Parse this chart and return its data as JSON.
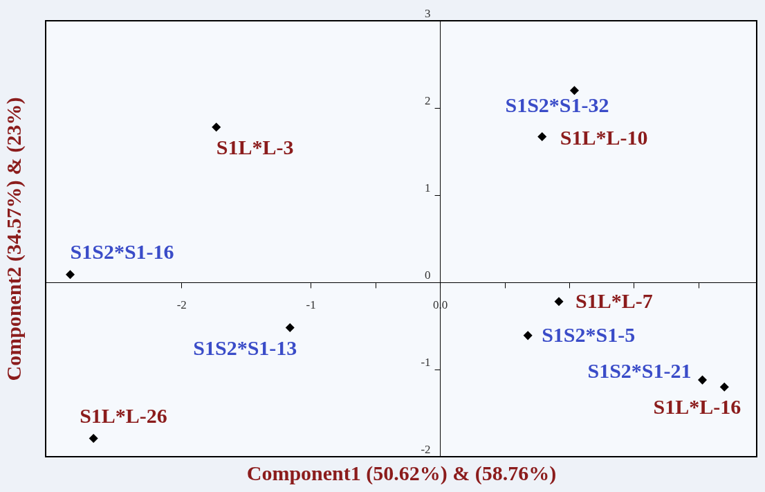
{
  "chart_data": {
    "type": "scatter",
    "xlabel": "Component1 (50.62%) & (58.76%)",
    "ylabel": "Component2 (34.57%) & (23%)",
    "xlim": [
      -3.05,
      2.45
    ],
    "ylim": [
      -2,
      3
    ],
    "xticks": [
      {
        "value": -2,
        "label": "-2"
      },
      {
        "value": -1,
        "label": "-1"
      },
      {
        "value": -0.5,
        "label": null
      },
      {
        "value": 0,
        "label": "0.0"
      },
      {
        "value": 0.5,
        "label": null
      },
      {
        "value": 1,
        "label": null
      },
      {
        "value": 1.5,
        "label": null
      },
      {
        "value": 2,
        "label": null
      }
    ],
    "yticks": [
      -2,
      -1,
      0,
      1,
      2,
      3
    ],
    "marker": "diamond",
    "grid": false,
    "series": [
      {
        "color": "#000000",
        "x": [
          -1.73,
          0.79,
          0.92,
          2.2,
          -2.68
        ],
        "values": [
          1.78,
          1.67,
          -0.22,
          -1.2,
          -1.79
        ]
      },
      {
        "color": "#000000",
        "x": [
          -2.86,
          -1.16,
          1.04,
          0.68,
          2.03
        ],
        "values": [
          0.09,
          -0.52,
          2.2,
          -0.61,
          -1.12
        ]
      }
    ],
    "annotations": [
      {
        "text": "S1L*L-3",
        "x": -1.73,
        "y": 1.78
      },
      {
        "text": "S1L*L-10",
        "x": 0.79,
        "y": 1.67
      },
      {
        "text": "S1L*L-7",
        "x": 0.92,
        "y": -0.22
      },
      {
        "text": "S1L*L-16",
        "x": 2.2,
        "y": -1.2
      },
      {
        "text": "S1L*L-26",
        "x": -2.68,
        "y": -1.79
      },
      {
        "text": "S1S2*S1-16",
        "x": -2.86,
        "y": 0.09
      },
      {
        "text": "S1S2*S1-13",
        "x": -1.16,
        "y": -0.52
      },
      {
        "text": "S1S2*S1-32",
        "x": 1.04,
        "y": 2.2
      },
      {
        "text": "S1S2*S1-5",
        "x": 0.68,
        "y": -0.61
      },
      {
        "text": "S1S2*S1-21",
        "x": 2.03,
        "y": -1.12
      }
    ]
  }
}
